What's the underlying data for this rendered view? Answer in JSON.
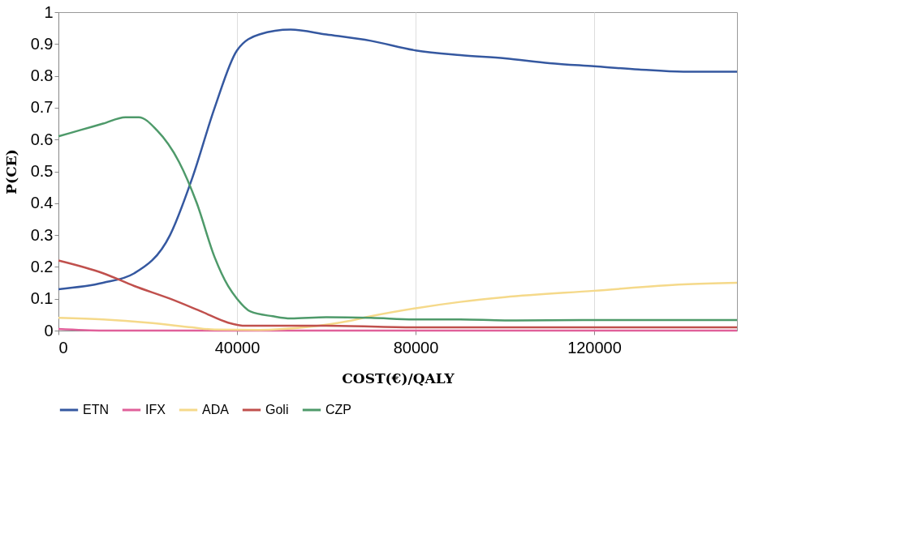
{
  "chart_data": {
    "type": "line",
    "xlabel": "COST(€)/QALY",
    "ylabel": "P(CE)",
    "xlim": [
      0,
      152000
    ],
    "xticks": [
      0,
      40000,
      80000,
      120000
    ],
    "ylim": [
      0,
      1
    ],
    "yticks": [
      0,
      0.1,
      0.2,
      0.3,
      0.4,
      0.5,
      0.6,
      0.7,
      0.8,
      0.9,
      1
    ],
    "grid": "x",
    "legend": "bottom",
    "marker": "none",
    "line_style": "solid",
    "series": [
      {
        "name": "ETN",
        "color": "#3558a0",
        "x": [
          0,
          10000,
          17000,
          25000,
          30000,
          35000,
          40000,
          45000,
          52000,
          60000,
          70000,
          80000,
          90000,
          100000,
          110000,
          120000,
          130000,
          140000,
          152000
        ],
        "values": [
          0.13,
          0.15,
          0.18,
          0.3,
          0.48,
          0.7,
          0.88,
          0.93,
          0.945,
          0.93,
          0.91,
          0.88,
          0.865,
          0.855,
          0.84,
          0.83,
          0.82,
          0.813,
          0.813
        ]
      },
      {
        "name": "IFX",
        "color": "#e0609a",
        "x": [
          0,
          10000,
          152000
        ],
        "values": [
          0.005,
          0,
          0
        ]
      },
      {
        "name": "ADA",
        "color": "#f5d98a",
        "x": [
          0,
          10000,
          20000,
          30000,
          35000,
          45000,
          55000,
          65000,
          70000,
          80000,
          90000,
          100000,
          120000,
          140000,
          152000
        ],
        "values": [
          0.04,
          0.035,
          0.025,
          0.01,
          0.003,
          0.002,
          0.01,
          0.03,
          0.045,
          0.07,
          0.09,
          0.105,
          0.125,
          0.145,
          0.15
        ]
      },
      {
        "name": "Goli",
        "color": "#c0504d",
        "x": [
          0,
          10000,
          17000,
          25000,
          32000,
          38000,
          42000,
          50000,
          60000,
          80000,
          152000
        ],
        "values": [
          0.22,
          0.18,
          0.14,
          0.1,
          0.06,
          0.025,
          0.015,
          0.015,
          0.015,
          0.01,
          0.01
        ]
      },
      {
        "name": "CZP",
        "color": "#4e9a6a",
        "x": [
          0,
          5000,
          10000,
          15000,
          18000,
          22000,
          27000,
          31000,
          35000,
          38000,
          40000,
          43000,
          48000,
          52000,
          60000,
          70000,
          80000,
          90000,
          100000,
          120000,
          152000
        ],
        "values": [
          0.61,
          0.63,
          0.65,
          0.67,
          0.67,
          0.63,
          0.53,
          0.4,
          0.23,
          0.14,
          0.1,
          0.06,
          0.045,
          0.038,
          0.042,
          0.04,
          0.035,
          0.035,
          0.032,
          0.033,
          0.033
        ]
      }
    ]
  }
}
